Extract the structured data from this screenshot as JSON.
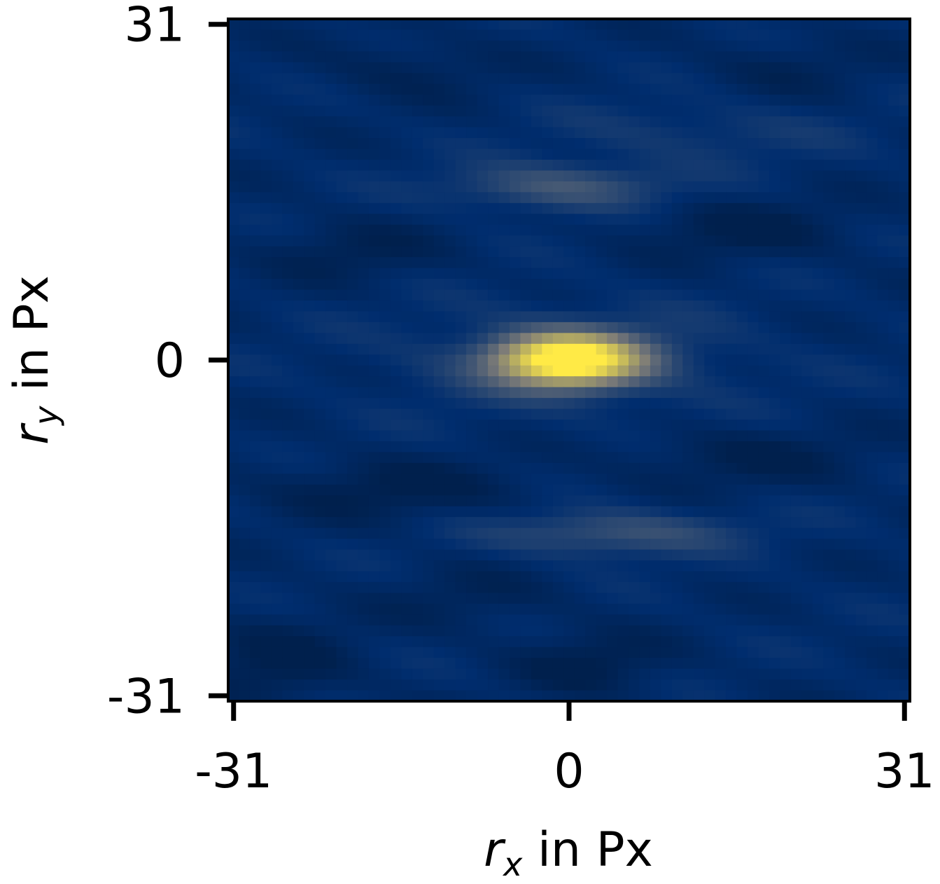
{
  "chart_data": {
    "type": "heatmap",
    "title": "",
    "xlabel": {
      "symbol": "r",
      "subscript": "x",
      "text": " in Px"
    },
    "ylabel": {
      "symbol": "r",
      "subscript": "y",
      "text": " in Px"
    },
    "xlim": [
      -31,
      31
    ],
    "ylim": [
      -31,
      31
    ],
    "x_ticks": [
      {
        "value": -31,
        "label": "-31"
      },
      {
        "value": 0,
        "label": "0"
      },
      {
        "value": 31,
        "label": "31"
      }
    ],
    "y_ticks": [
      {
        "value": 31,
        "label": "31"
      },
      {
        "value": 0,
        "label": "0"
      },
      {
        "value": -31,
        "label": "-31"
      }
    ],
    "grid": false,
    "colorbar": false,
    "colormap": "cividis",
    "colors": {
      "low": "#00204d",
      "mid": "#7c7b78",
      "high": "#ffea46"
    },
    "peak": {
      "x": 0,
      "y": 0,
      "value": 1.0
    },
    "features": [
      {
        "x": -1,
        "y": 16,
        "sx": 7,
        "sy": 1.5,
        "value": 0.22
      },
      {
        "x": 4,
        "y": -16,
        "sx": 8,
        "sy": 1.5,
        "value": 0.2
      },
      {
        "x": 12,
        "y": 21,
        "sx": 9,
        "sy": 2,
        "value": 0.08
      },
      {
        "x": -9,
        "y": -22,
        "sx": 6,
        "sy": 2,
        "value": -0.06
      },
      {
        "x": -20,
        "y": 10,
        "sx": 6,
        "sy": 2,
        "value": -0.08
      },
      {
        "x": 16,
        "y": 12,
        "sx": 7,
        "sy": 2,
        "value": -0.1
      },
      {
        "x": 16,
        "y": -9,
        "sx": 8,
        "sy": 2,
        "value": -0.09
      },
      {
        "x": -16,
        "y": -12,
        "sx": 9,
        "sy": 2,
        "value": -0.1
      },
      {
        "x": 2,
        "y": -28,
        "sx": 5,
        "sy": 2,
        "value": -0.1
      },
      {
        "x": -27,
        "y": -28,
        "sx": 5,
        "sy": 3,
        "value": -0.1
      },
      {
        "x": -15,
        "y": 27,
        "sx": 6,
        "sy": 2,
        "value": -0.07
      },
      {
        "x": 20,
        "y": 27,
        "sx": 6,
        "sy": 2,
        "value": -0.06
      }
    ]
  }
}
